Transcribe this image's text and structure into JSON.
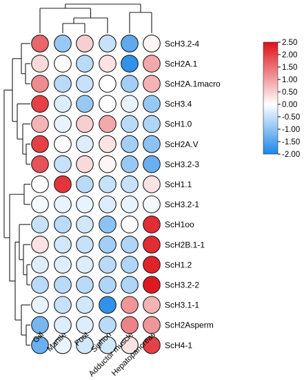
{
  "chart_data": {
    "type": "heatmap",
    "style": "circle cells with row and column dendrograms",
    "columns": [
      "Gill",
      "Mantle",
      "Foot",
      "Siphon",
      "Adductor muscle",
      "Hepatopancreas"
    ],
    "rows": [
      {
        "label": "ScH3.2-4",
        "values": [
          1.6,
          -0.9,
          0.5,
          -0.5,
          -1.4,
          0.1
        ]
      },
      {
        "label": "ScH2A.1",
        "values": [
          0.4,
          0.0,
          -0.6,
          0.3,
          -1.8,
          0.9
        ]
      },
      {
        "label": "ScH2A.1macro",
        "values": [
          1.2,
          -0.6,
          -0.5,
          0.0,
          -0.8,
          0.8
        ]
      },
      {
        "label": "ScH3.4",
        "values": [
          2.0,
          -0.3,
          -0.9,
          0.0,
          -0.2,
          -0.9
        ]
      },
      {
        "label": "ScH1.0",
        "values": [
          0.8,
          -0.2,
          0.5,
          0.9,
          -0.6,
          -0.7
        ]
      },
      {
        "label": "ScH2A.V",
        "values": [
          2.0,
          0.0,
          -0.3,
          0.3,
          -0.8,
          -1.0
        ]
      },
      {
        "label": "ScH3.2-3",
        "values": [
          1.8,
          -0.5,
          0.4,
          0.1,
          -0.9,
          -1.3
        ]
      },
      {
        "label": "ScH1.1",
        "values": [
          0.0,
          2.1,
          -0.6,
          -0.5,
          -0.5,
          0.3
        ]
      },
      {
        "label": "ScH3.2-1",
        "values": [
          -0.1,
          -0.2,
          -0.2,
          -0.3,
          -0.2,
          -0.1
        ]
      },
      {
        "label": "ScH1oo",
        "values": [
          -0.5,
          -0.6,
          -0.4,
          -1.0,
          0.0,
          2.2
        ]
      },
      {
        "label": "ScH2B.1-1",
        "values": [
          0.3,
          -0.4,
          -0.5,
          -0.8,
          -0.7,
          2.2
        ]
      },
      {
        "label": "ScH1.2",
        "values": [
          -0.3,
          -0.3,
          -0.3,
          -0.6,
          -0.7,
          2.3
        ]
      },
      {
        "label": "ScH3.2-2",
        "values": [
          -0.6,
          -0.6,
          -0.6,
          -0.7,
          -0.7,
          2.4
        ]
      },
      {
        "label": "ScH3.1-1",
        "values": [
          -0.2,
          -0.5,
          -0.4,
          -1.8,
          1.1,
          0.8
        ]
      },
      {
        "label": "ScH2Asperm",
        "values": [
          -1.2,
          -0.3,
          -0.3,
          -0.6,
          1.3,
          1.1
        ]
      },
      {
        "label": "ScH4-1",
        "values": [
          -1.3,
          -0.2,
          -0.4,
          -0.4,
          0.3,
          2.0
        ]
      }
    ],
    "color_scale": {
      "min": -2.0,
      "max": 2.5,
      "ticks": [
        "2.50",
        "2.00",
        "1.50",
        "1.00",
        "0.50",
        "0.00",
        "-0.50",
        "-1.00",
        "-1.50",
        "-2.00"
      ],
      "tick_values": [
        2.5,
        2.0,
        1.5,
        1.0,
        0.5,
        0.0,
        -0.5,
        -1.0,
        -1.5,
        -2.0
      ],
      "stops": [
        {
          "value": -2.0,
          "color": "#1a86e8"
        },
        {
          "value": 0.0,
          "color": "#ffffff"
        },
        {
          "value": 2.5,
          "color": "#dd1017"
        }
      ]
    },
    "legend_placement": "right"
  }
}
